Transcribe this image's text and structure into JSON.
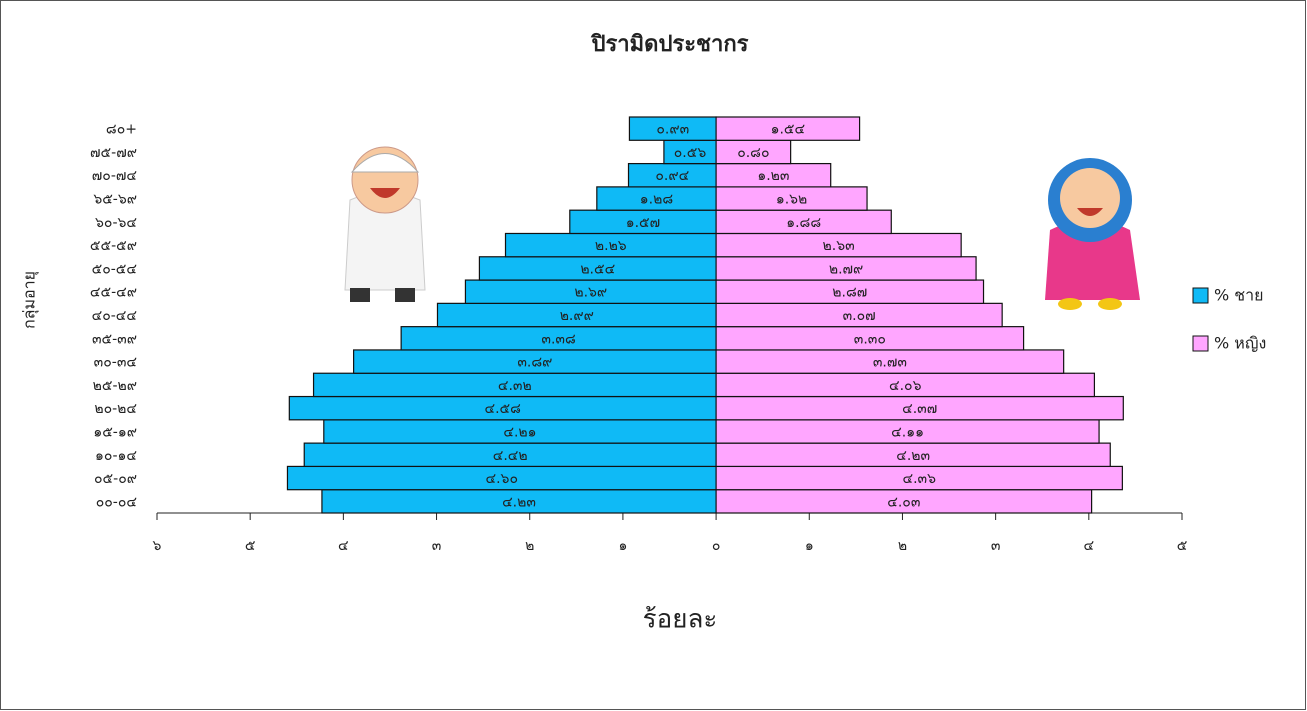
{
  "chart_data": {
    "type": "pyramid",
    "title": "ปิรามิดประชากร",
    "x_label": "ร้อยละ",
    "y_label": "กลุ่มอายุ",
    "categories": [
      "๐๐-๐๔",
      "๐๕-๐๙",
      "๑๐-๑๔",
      "๑๕-๑๙",
      "๒๐-๒๔",
      "๒๕-๒๙",
      "๓๐-๓๔",
      "๓๕-๓๙",
      "๔๐-๔๔",
      "๔๕-๔๙",
      "๕๐-๕๔",
      "๕๕-๕๙",
      "๖๐-๖๔",
      "๖๕-๖๙",
      "๗๐-๗๔",
      "๗๕-๗๙",
      "๘๐+"
    ],
    "series": [
      {
        "name": "% ชาย",
        "color": "#0fbaf6",
        "side": "left",
        "values": [
          4.23,
          4.6,
          4.42,
          4.21,
          4.58,
          4.32,
          3.89,
          3.38,
          2.99,
          2.69,
          2.54,
          2.26,
          1.57,
          1.28,
          0.94,
          0.56,
          0.93
        ],
        "value_labels": [
          "๔.๒๓",
          "๔.๖๐",
          "๔.๔๒",
          "๔.๒๑",
          "๔.๕๘",
          "๔.๓๒",
          "๓.๘๙",
          "๓.๓๘",
          "๒.๙๙",
          "๒.๖๙",
          "๒.๕๔",
          "๒.๒๖",
          "๑.๕๗",
          "๑.๒๘",
          "๐.๙๔",
          "๐.๕๖",
          "๐.๙๓"
        ]
      },
      {
        "name": "% หญิง",
        "color": "#ffa6ff",
        "side": "right",
        "values": [
          4.03,
          4.36,
          4.23,
          4.11,
          4.37,
          4.06,
          3.73,
          3.3,
          3.07,
          2.87,
          2.79,
          2.63,
          1.88,
          1.62,
          1.23,
          0.8,
          1.54
        ],
        "value_labels": [
          "๔.๐๓",
          "๔.๓๖",
          "๔.๒๓",
          "๔.๑๑",
          "๔.๓๗",
          "๔.๐๖",
          "๓.๗๓",
          "๓.๓๐",
          "๓.๐๗",
          "๒.๘๗",
          "๒.๗๙",
          "๒.๖๓",
          "๑.๘๘",
          "๑.๖๒",
          "๑.๒๓",
          "๐.๘๐",
          "๑.๕๔"
        ]
      }
    ],
    "xlim": [
      -6,
      5
    ],
    "xticks": [
      {
        "value": -6,
        "label": "๖"
      },
      {
        "value": -5,
        "label": "๕"
      },
      {
        "value": -4,
        "label": "๔"
      },
      {
        "value": -3,
        "label": "๓"
      },
      {
        "value": -2,
        "label": "๒"
      },
      {
        "value": -1,
        "label": "๑"
      },
      {
        "value": 0,
        "label": "๐"
      },
      {
        "value": 1,
        "label": "๑"
      },
      {
        "value": 2,
        "label": "๒"
      },
      {
        "value": 3,
        "label": "๓"
      },
      {
        "value": 4,
        "label": "๔"
      },
      {
        "value": 5,
        "label": "๕"
      }
    ],
    "legend": "right"
  }
}
